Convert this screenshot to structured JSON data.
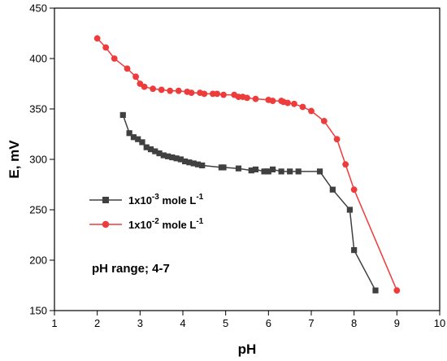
{
  "chart_data": {
    "type": "line",
    "xlabel": "pH",
    "ylabel": "E, mV",
    "xlim": [
      1,
      10
    ],
    "ylim": [
      150,
      450
    ],
    "xticks": [
      1,
      2,
      3,
      4,
      5,
      6,
      7,
      8,
      9,
      10
    ],
    "yticks": [
      150,
      200,
      250,
      300,
      350,
      400,
      450
    ],
    "grid": false,
    "legend_position": "center-left",
    "annotation": "pH range; 4-7",
    "series": [
      {
        "name_base": "1x10",
        "name_exp": "-3",
        "name_mid": " mole L",
        "name_exp2": "-1",
        "color": "#404040",
        "marker": "square",
        "x": [
          2.6,
          2.75,
          2.85,
          2.95,
          3.05,
          3.15,
          3.25,
          3.35,
          3.45,
          3.55,
          3.65,
          3.75,
          3.85,
          3.95,
          4.05,
          4.15,
          4.25,
          4.35,
          4.45,
          4.9,
          4.95,
          5.3,
          5.6,
          5.7,
          5.9,
          5.95,
          6.0,
          6.1,
          6.3,
          6.5,
          6.7,
          7.2,
          7.5,
          7.9,
          8.0,
          8.5
        ],
        "y": [
          344,
          326,
          322,
          320,
          317,
          312,
          310,
          308,
          306,
          304,
          303,
          302,
          301,
          300,
          298,
          297,
          296,
          295,
          294,
          292,
          292,
          291,
          289,
          290,
          288,
          288,
          288,
          290,
          288,
          288,
          288,
          288,
          270,
          250,
          210,
          170
        ]
      },
      {
        "name_base": "1x10",
        "name_exp": "-2",
        "name_mid": " mole L",
        "name_exp2": "-1",
        "color": "#ee3b3b",
        "marker": "circle",
        "x": [
          2.0,
          2.2,
          2.4,
          2.7,
          2.9,
          3.0,
          3.1,
          3.3,
          3.5,
          3.7,
          3.9,
          4.1,
          4.2,
          4.4,
          4.5,
          4.7,
          4.8,
          4.95,
          5.2,
          5.3,
          5.4,
          5.5,
          5.7,
          6.0,
          6.1,
          6.3,
          6.35,
          6.45,
          6.6,
          6.8,
          7.0,
          7.3,
          7.6,
          7.8,
          8.0,
          9.0
        ],
        "y": [
          420,
          411,
          400,
          390,
          382,
          375,
          372,
          370,
          369,
          368,
          368,
          367,
          366,
          366,
          365,
          365,
          365,
          364,
          364,
          362,
          362,
          361,
          360,
          359,
          358,
          358,
          357,
          356,
          355,
          352,
          348,
          338,
          320,
          295,
          270,
          170
        ]
      }
    ]
  }
}
